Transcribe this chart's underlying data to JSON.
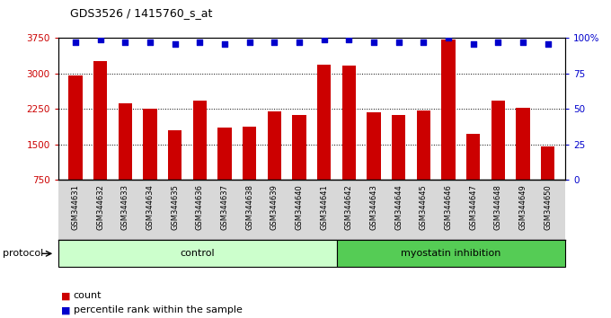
{
  "title": "GDS3526 / 1415760_s_at",
  "samples": [
    "GSM344631",
    "GSM344632",
    "GSM344633",
    "GSM344634",
    "GSM344635",
    "GSM344636",
    "GSM344637",
    "GSM344638",
    "GSM344639",
    "GSM344640",
    "GSM344641",
    "GSM344642",
    "GSM344643",
    "GSM344644",
    "GSM344645",
    "GSM344646",
    "GSM344647",
    "GSM344648",
    "GSM344649",
    "GSM344650"
  ],
  "counts": [
    2960,
    3270,
    2360,
    2250,
    1790,
    2420,
    1860,
    1870,
    2200,
    2120,
    3180,
    3160,
    2180,
    2130,
    2220,
    3720,
    1730,
    2430,
    2280,
    1450
  ],
  "percentile_ranks": [
    97,
    99,
    97,
    97,
    96,
    97,
    96,
    97,
    97,
    97,
    99,
    99,
    97,
    97,
    97,
    100,
    96,
    97,
    97,
    96
  ],
  "groups": [
    "control",
    "control",
    "control",
    "control",
    "control",
    "control",
    "control",
    "control",
    "control",
    "control",
    "control",
    "myostatin inhibition",
    "myostatin inhibition",
    "myostatin inhibition",
    "myostatin inhibition",
    "myostatin inhibition",
    "myostatin inhibition",
    "myostatin inhibition",
    "myostatin inhibition",
    "myostatin inhibition"
  ],
  "control_color": "#ccffcc",
  "myostatin_color": "#55cc55",
  "bar_color": "#cc0000",
  "dot_color": "#0000cc",
  "ylim_left": [
    750,
    3750
  ],
  "ylim_right": [
    0,
    100
  ],
  "yticks_left": [
    750,
    1500,
    2250,
    3000,
    3750
  ],
  "yticks_right": [
    0,
    25,
    50,
    75,
    100
  ],
  "grid_values": [
    1500,
    2250,
    3000
  ],
  "control_count": 11,
  "bg_gray": "#d8d8d8"
}
